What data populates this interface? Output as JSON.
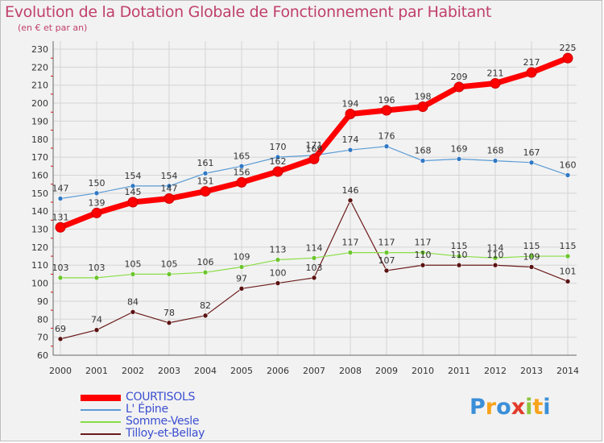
{
  "chart_data": {
    "type": "line",
    "title": "Evolution de la Dotation Globale de Fonctionnement par Habitant",
    "subtitle": "(en € et par an)",
    "xlabel": "",
    "ylabel": "",
    "ylim": [
      60,
      230
    ],
    "yticks": [
      60,
      70,
      80,
      90,
      100,
      110,
      120,
      130,
      140,
      150,
      160,
      170,
      180,
      190,
      200,
      210,
      220,
      230
    ],
    "x": [
      "2000",
      "2001",
      "2002",
      "2003",
      "2004",
      "2005",
      "2006",
      "2007",
      "2008",
      "2009",
      "2010",
      "2011",
      "2012",
      "2013",
      "2014"
    ],
    "grid": true,
    "legend_position": "bottom-left",
    "series": [
      {
        "name": "COURTISOLS",
        "color": "#ff0000",
        "values": [
          131,
          139,
          145,
          147,
          151,
          156,
          162,
          169,
          194,
          196,
          198,
          209,
          211,
          217,
          225
        ]
      },
      {
        "name": "L' Épine",
        "color": "#5b9bd5",
        "values": [
          147,
          150,
          154,
          154,
          161,
          165,
          170,
          171,
          174,
          176,
          168,
          169,
          168,
          167,
          160
        ]
      },
      {
        "name": "Somme-Vesle",
        "color": "#88dd44",
        "values": [
          103,
          103,
          105,
          105,
          106,
          109,
          113,
          114,
          117,
          117,
          117,
          115,
          114,
          115,
          115
        ]
      },
      {
        "name": "Tilloy-et-Bellay",
        "color": "#6b1b1b",
        "values": [
          69,
          74,
          84,
          78,
          82,
          97,
          100,
          103,
          146,
          107,
          110,
          110,
          110,
          109,
          101
        ]
      }
    ]
  },
  "logo": {
    "letters": [
      "P",
      "r",
      "o",
      "x",
      "i",
      "t",
      "i"
    ],
    "colors": [
      "#3b8fd8",
      "#f7a31c",
      "#3b8fd8",
      "#e23b2b",
      "#8cc63f",
      "#f7a31c",
      "#3b8fd8"
    ]
  }
}
